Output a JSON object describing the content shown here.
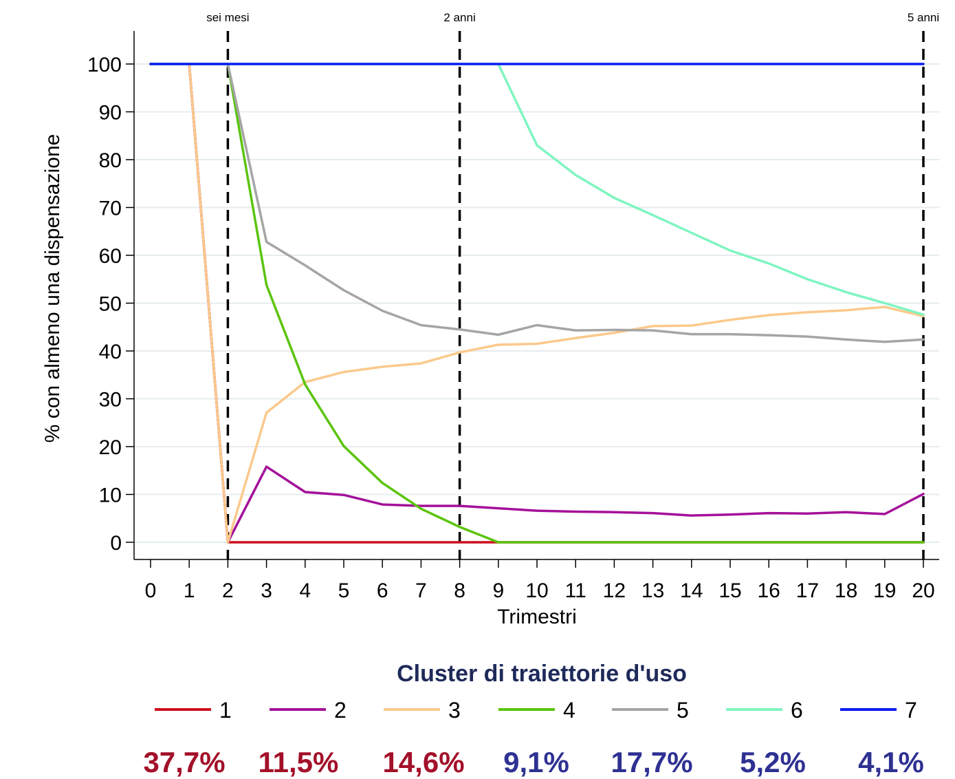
{
  "chart_data": {
    "type": "line",
    "xlabel": "Trimestri",
    "ylabel": "% con almeno una dispensazione",
    "x": [
      0,
      1,
      2,
      3,
      4,
      5,
      6,
      7,
      8,
      9,
      10,
      11,
      12,
      13,
      14,
      15,
      16,
      17,
      18,
      19,
      20
    ],
    "xlim": [
      0,
      20
    ],
    "ylim": [
      0,
      100
    ],
    "yticks": [
      0,
      10,
      20,
      30,
      40,
      50,
      60,
      70,
      80,
      90,
      100
    ],
    "grid": true,
    "reference_lines": [
      {
        "x": 2,
        "label": "sei mesi"
      },
      {
        "x": 8,
        "label": "2 anni"
      },
      {
        "x": 20,
        "label": "5 anni"
      }
    ],
    "legend": {
      "title": "Cluster di traiettorie d'uso",
      "placement": "bottom"
    },
    "series": [
      {
        "name": "1",
        "color": "#cc0f1e",
        "share": "37,7%",
        "share_color": "#a31029",
        "values": [
          100,
          100,
          0,
          0,
          0,
          0,
          0,
          0,
          0,
          0,
          0,
          0,
          0,
          0,
          0,
          0,
          0,
          0,
          0,
          0,
          0
        ]
      },
      {
        "name": "2",
        "color": "#a4119a",
        "share": "11,5%",
        "share_color": "#a31029",
        "values": [
          100,
          100,
          0,
          15.8,
          10.5,
          9.9,
          7.9,
          7.6,
          7.6,
          7.1,
          6.6,
          6.4,
          6.3,
          6.1,
          5.6,
          5.8,
          6.1,
          6.0,
          6.3,
          5.9,
          10.1
        ]
      },
      {
        "name": "3",
        "color": "#fbc98b",
        "share": "14,6%",
        "share_color": "#a31029",
        "values": [
          100,
          100,
          0,
          27.1,
          33.5,
          35.6,
          36.7,
          37.4,
          39.7,
          41.3,
          41.5,
          42.7,
          43.8,
          45.2,
          45.3,
          46.5,
          47.5,
          48.1,
          48.5,
          49.2,
          47.3
        ]
      },
      {
        "name": "4",
        "color": "#5bc40e",
        "share": "9,1%",
        "share_color": "#2e3192",
        "values": [
          100,
          100,
          100,
          53.8,
          33.0,
          20.1,
          12.4,
          7.0,
          3.2,
          0,
          0,
          0,
          0,
          0,
          0,
          0,
          0,
          0,
          0,
          0,
          0
        ]
      },
      {
        "name": "5",
        "color": "#a5a5a5",
        "share": "17,7%",
        "share_color": "#2e3192",
        "values": [
          100,
          100,
          100,
          62.8,
          57.9,
          52.7,
          48.4,
          45.4,
          44.5,
          43.4,
          45.4,
          44.3,
          44.4,
          44.3,
          43.5,
          43.5,
          43.3,
          43.0,
          42.4,
          41.9,
          42.4
        ]
      },
      {
        "name": "6",
        "color": "#7ff5c0",
        "share": "5,2%",
        "share_color": "#2e3192",
        "values": [
          100,
          100,
          100,
          100,
          100,
          100,
          100,
          100,
          100,
          100,
          83.0,
          76.8,
          72.0,
          68.4,
          64.7,
          61.0,
          58.3,
          55.0,
          52.3,
          50.0,
          47.6
        ]
      },
      {
        "name": "7",
        "color": "#0b1cf0",
        "share": "4,1%",
        "share_color": "#2e3192",
        "values": [
          100,
          100,
          100,
          100,
          100,
          100,
          100,
          100,
          100,
          100,
          100,
          100,
          100,
          100,
          100,
          100,
          100,
          100,
          100,
          100,
          100
        ]
      }
    ]
  }
}
